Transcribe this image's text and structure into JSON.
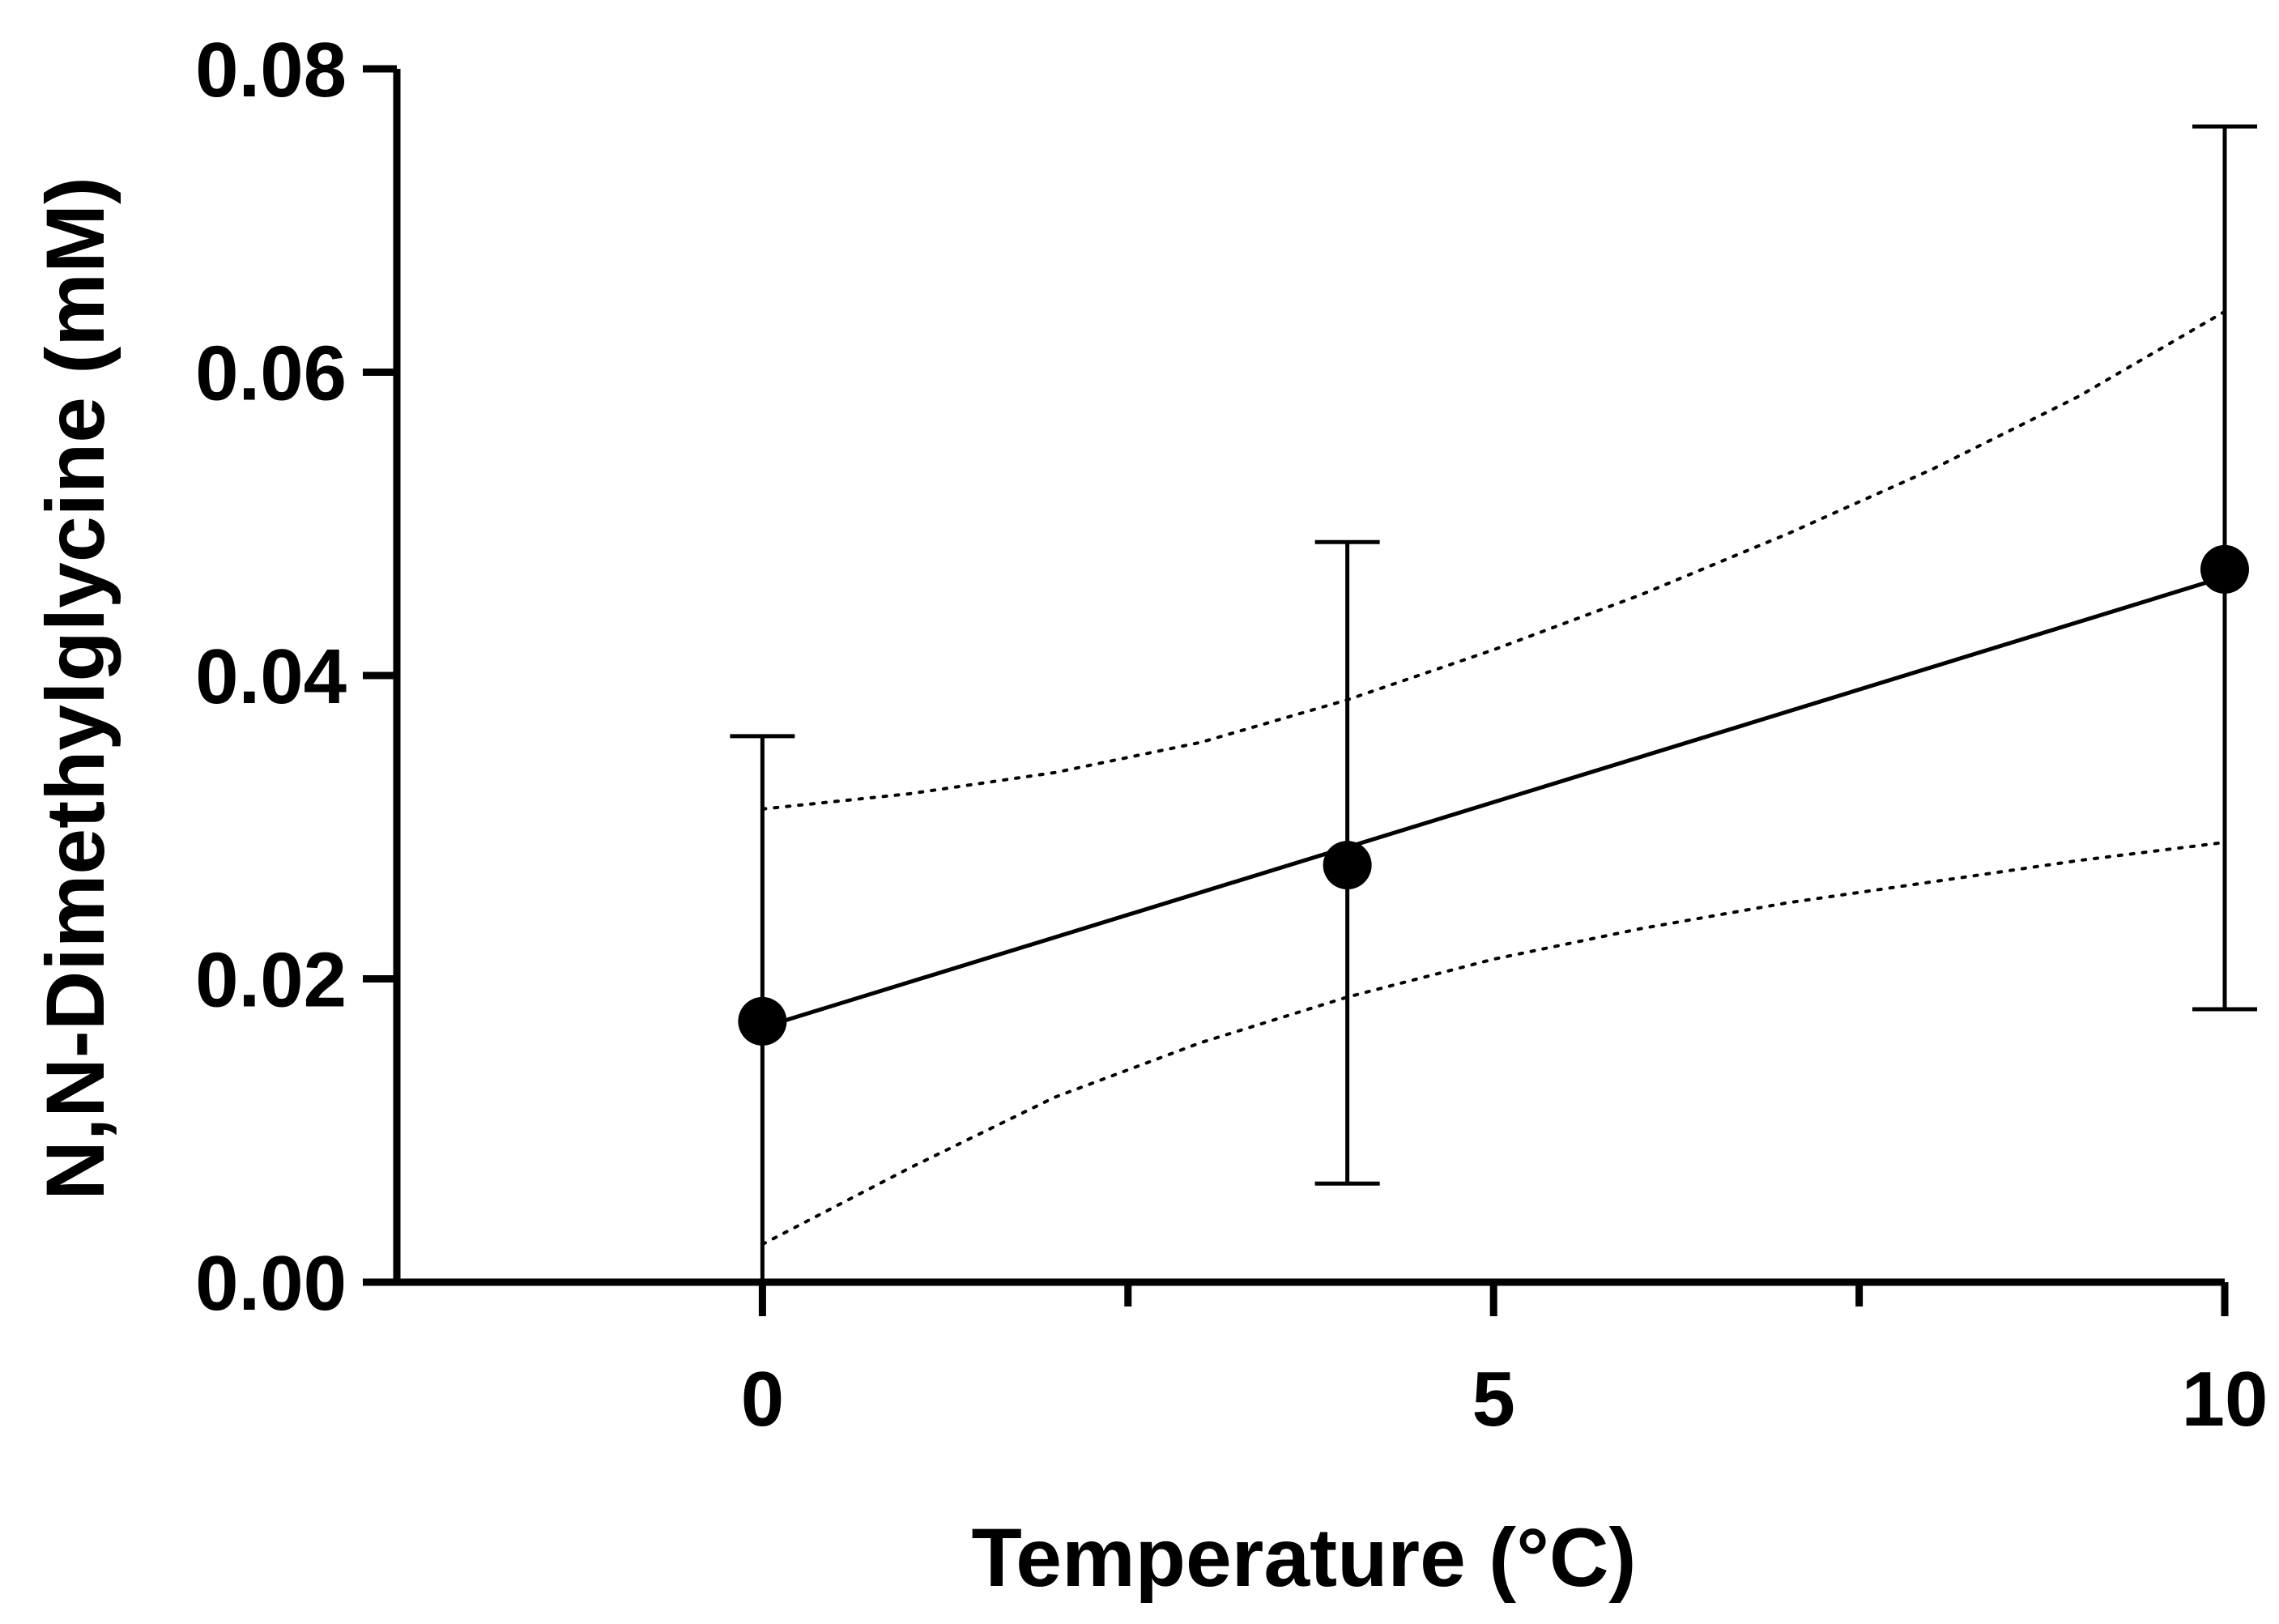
{
  "chart_data": {
    "type": "scatter",
    "title": "",
    "xlabel": "Temperature (°C)",
    "ylabel": "N,N-Dimethylglycine (mM)",
    "xlim": [
      -2.5,
      10
    ],
    "ylim": [
      0,
      0.08
    ],
    "grid": false,
    "legend": "none",
    "x_ticks": [
      0,
      5,
      10
    ],
    "x_tick_labels": [
      "0",
      "5",
      "10"
    ],
    "x_minor_ticks": [
      2.5,
      7.5
    ],
    "y_ticks": [
      0,
      0.02,
      0.04,
      0.06,
      0.08
    ],
    "y_tick_labels": [
      "0.00",
      "0.02",
      "0.04",
      "0.06",
      "0.08"
    ],
    "series": [
      {
        "name": "N,N-Dimethylglycine",
        "x": [
          0,
          4,
          10
        ],
        "y": [
          0.0172,
          0.0275,
          0.047
        ],
        "error_upper": [
          0.036,
          0.0488,
          0.0762
        ],
        "error_lower": [
          0.0,
          0.0065,
          0.018
        ]
      }
    ],
    "fit_line": {
      "x": [
        0,
        10
      ],
      "y": [
        0.0168,
        0.0465
      ]
    },
    "confidence_band": {
      "x": [
        0,
        1,
        2,
        3,
        4,
        5,
        6,
        7,
        8,
        9,
        10
      ],
      "upper": [
        0.0312,
        0.0322,
        0.0336,
        0.0356,
        0.0384,
        0.0417,
        0.0453,
        0.0493,
        0.0536,
        0.0584,
        0.064
      ],
      "lower": [
        0.0025,
        0.0075,
        0.0122,
        0.0158,
        0.0188,
        0.0213,
        0.0233,
        0.025,
        0.0264,
        0.0278,
        0.029
      ]
    },
    "colors": {
      "marks": "#000000",
      "background": "#ffffff"
    }
  }
}
